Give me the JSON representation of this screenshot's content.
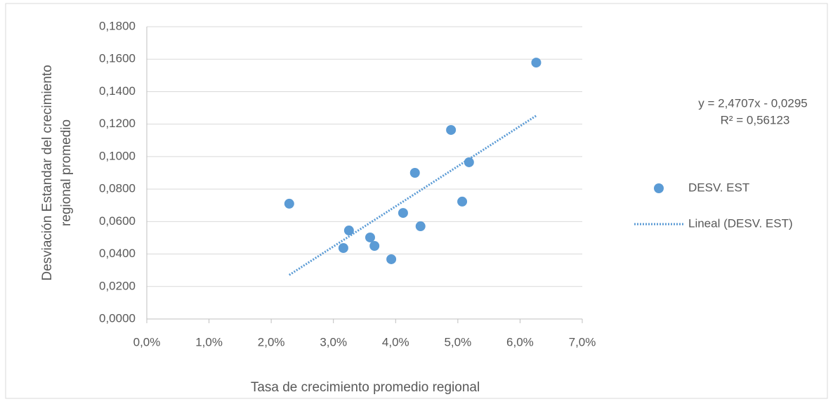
{
  "chart_data": {
    "type": "scatter",
    "x_label": "Tasa de crecimiento promedio regional",
    "y_label_lines": [
      "Desviación Estandar del crecimiento",
      "regional promedio"
    ],
    "xlim": [
      0,
      7
    ],
    "xticks": [
      {
        "value": 0,
        "label": "0,0%"
      },
      {
        "value": 1,
        "label": "1,0%"
      },
      {
        "value": 2,
        "label": "2,0%"
      },
      {
        "value": 3,
        "label": "3,0%"
      },
      {
        "value": 4,
        "label": "4,0%"
      },
      {
        "value": 5,
        "label": "5,0%"
      },
      {
        "value": 6,
        "label": "6,0%"
      },
      {
        "value": 7,
        "label": "7,0%"
      }
    ],
    "ylim": [
      0,
      0.18
    ],
    "yticks": [
      {
        "value": 0,
        "label": "0,0000"
      },
      {
        "value": 0.02,
        "label": "0,0200"
      },
      {
        "value": 0.04,
        "label": "0,0400"
      },
      {
        "value": 0.06,
        "label": "0,0600"
      },
      {
        "value": 0.08,
        "label": "0,0800"
      },
      {
        "value": 0.1,
        "label": "0,1000"
      },
      {
        "value": 0.12,
        "label": "0,1200"
      },
      {
        "value": 0.14,
        "label": "0,1400"
      },
      {
        "value": 0.16,
        "label": "0,1600"
      },
      {
        "value": 0.18,
        "label": "0,1800"
      }
    ],
    "grid": true,
    "series": [
      {
        "name": "DESV. EST",
        "color": "#5b9bd5",
        "x": [
          2.29,
          3.16,
          3.25,
          3.59,
          3.66,
          3.93,
          4.12,
          4.31,
          4.4,
          4.89,
          5.07,
          5.18,
          6.26
        ],
        "values": [
          0.071,
          0.0437,
          0.0545,
          0.0502,
          0.045,
          0.0368,
          0.0653,
          0.09,
          0.0571,
          0.1164,
          0.0723,
          0.0965,
          0.1579
        ]
      },
      {
        "name": "Lineal  (DESV. EST)",
        "color": "#5b9bd5",
        "line": "dotted",
        "x": [
          2.29,
          6.26
        ],
        "values": [
          0.0271,
          0.1252
        ]
      }
    ],
    "annotations": [
      "y = 2,4707x - 0,0295",
      "R² = 0,56123"
    ]
  }
}
